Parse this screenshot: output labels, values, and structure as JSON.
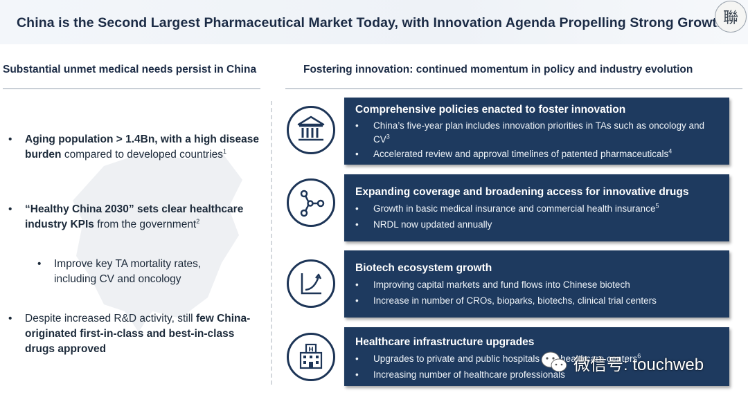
{
  "header": {
    "title": "China is the Second Largest Pharmaceutical Market Today, with Innovation Agenda Propelling Strong Growth",
    "logo_char": "聯"
  },
  "left": {
    "heading": "Substantial unmet medical needs persist in China",
    "bullets": [
      {
        "bold": "Aging population > 1.4Bn,  with a high disease burden",
        "rest": " compared to developed countries",
        "sup": "1"
      },
      {
        "bold": "“Healthy China 2030” sets clear healthcare industry KPIs",
        "rest": " from the government",
        "sup": "2"
      },
      {
        "sub": "Improve key TA mortality rates, including CV and oncology"
      },
      {
        "pre": "Despite increased R&D activity, still ",
        "bold": "few China-originated first-in-class and best-in-class drugs approved"
      }
    ]
  },
  "right": {
    "heading": "Fostering innovation: continued momentum in policy and industry evolution",
    "cards": [
      {
        "icon": "government-building-icon",
        "title": "Comprehensive policies enacted to foster innovation",
        "items": [
          {
            "text": "China’s five-year plan includes innovation priorities in TAs such as oncology and CV",
            "sup": "3"
          },
          {
            "text": "Accelerated review and approval timelines of patented pharmaceuticals",
            "sup": "4"
          }
        ]
      },
      {
        "icon": "network-nodes-icon",
        "title": "Expanding coverage and broadening access for innovative drugs",
        "items": [
          {
            "text": "Growth in basic medical insurance and commercial health insurance",
            "sup": "5"
          },
          {
            "text": "NRDL now updated annually",
            "sup": ""
          }
        ]
      },
      {
        "icon": "growth-chart-icon",
        "title": "Biotech ecosystem growth",
        "items": [
          {
            "text": "Improving capital markets and fund flows into Chinese biotech",
            "sup": ""
          },
          {
            "text": "Increase in number of CROs, bioparks, biotechs, clinical trial centers",
            "sup": ""
          }
        ]
      },
      {
        "icon": "hospital-icon",
        "title": "Healthcare infrastructure upgrades",
        "items": [
          {
            "text": "Upgrades to private and public hospitals and healthcare centers",
            "sup": "6"
          },
          {
            "text": "Increasing number of healthcare professionals",
            "sup": ""
          }
        ]
      }
    ]
  },
  "watermark": {
    "text": "微信号: touchweb"
  },
  "colors": {
    "card_bg": "#1e3a5f",
    "title": "#1b2b45",
    "icon_stroke": "#1d3557"
  }
}
